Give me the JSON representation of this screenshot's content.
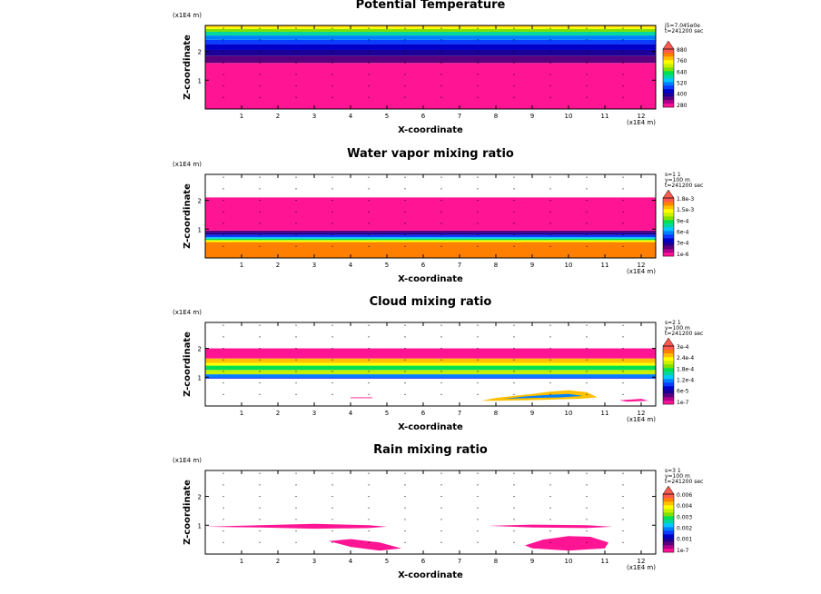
{
  "chart_data": [
    {
      "type": "heatmap",
      "title": "Potential Temperature",
      "xlabel": "X-coordinate",
      "ylabel": "Z-coordinate",
      "x_unit": "(x1E4 m)",
      "z_unit": "(x1E4 m)",
      "xlim": [
        0,
        12.4
      ],
      "zlim": [
        0,
        2.9
      ],
      "x_ticks": [
        "1",
        "2",
        "3",
        "4",
        "5",
        "6",
        "7",
        "8",
        "9",
        "10",
        "11",
        "12"
      ],
      "z_ticks": [
        "1",
        "2"
      ],
      "info": [
        "j5=7.045e0e",
        "t=241200 sec"
      ],
      "legend_labels": [
        "880",
        "760",
        "640",
        "520",
        "400",
        "280"
      ],
      "levels": [
        280,
        320,
        360,
        400,
        440,
        480,
        520,
        560,
        600,
        640,
        680,
        720,
        760,
        800,
        840,
        880
      ],
      "bands": [
        {
          "z0": 0.0,
          "z1": 1.6,
          "level": 280
        },
        {
          "z0": 1.6,
          "z1": 1.85,
          "level": 360
        },
        {
          "z0": 1.85,
          "z1": 2.05,
          "level": 400
        },
        {
          "z0": 2.05,
          "z1": 2.25,
          "level": 440
        },
        {
          "z0": 2.25,
          "z1": 2.4,
          "level": 480
        },
        {
          "z0": 2.4,
          "z1": 2.55,
          "level": 520
        },
        {
          "z0": 2.55,
          "z1": 2.68,
          "level": 600
        },
        {
          "z0": 2.68,
          "z1": 2.78,
          "level": 680
        },
        {
          "z0": 2.78,
          "z1": 2.85,
          "level": 760
        },
        {
          "z0": 2.85,
          "z1": 2.9,
          "level": 800
        }
      ],
      "patches": []
    },
    {
      "type": "heatmap",
      "title": "Water vapor mixing ratio",
      "xlabel": "X-coordinate",
      "ylabel": "Z-coordinate",
      "x_unit": "(x1E4 m)",
      "z_unit": "(x1E4 m)",
      "xlim": [
        0,
        12.4
      ],
      "zlim": [
        0,
        2.9
      ],
      "x_ticks": [
        "1",
        "2",
        "3",
        "4",
        "5",
        "6",
        "7",
        "8",
        "9",
        "10",
        "11",
        "12"
      ],
      "z_ticks": [
        "1",
        "2"
      ],
      "info": [
        "s=1 1",
        "y=100 m",
        "t=241200 sec"
      ],
      "legend_labels": [
        "1.8e-3",
        "1.5e-3",
        "9e-4",
        "6e-4",
        "3e-4",
        "1e-6"
      ],
      "levels": [
        1e-06,
        0.0001,
        0.0002,
        0.0003,
        0.0004,
        0.0005,
        0.0006,
        0.0007,
        0.0008,
        0.0009,
        0.0011,
        0.0012,
        0.0014,
        0.0015,
        0.0016,
        0.0018
      ],
      "bands": [
        {
          "z0": 0.0,
          "z1": 0.55,
          "level": 0.0016
        },
        {
          "z0": 0.55,
          "z1": 0.62,
          "level": 0.0014
        },
        {
          "z0": 0.62,
          "z1": 0.67,
          "level": 0.0009
        },
        {
          "z0": 0.67,
          "z1": 0.72,
          "level": 0.0007
        },
        {
          "z0": 0.72,
          "z1": 0.8,
          "level": 0.0005
        },
        {
          "z0": 0.8,
          "z1": 0.88,
          "level": 0.0003
        },
        {
          "z0": 0.88,
          "z1": 0.95,
          "level": 0.0002
        },
        {
          "z0": 0.95,
          "z1": 2.1,
          "level": 1e-06
        }
      ],
      "patches": []
    },
    {
      "type": "heatmap",
      "title": "Cloud mixing ratio",
      "xlabel": "X-coordinate",
      "ylabel": "Z-coordinate",
      "x_unit": "(x1E4 m)",
      "z_unit": "(x1E4 m)",
      "xlim": [
        0,
        12.4
      ],
      "zlim": [
        0,
        2.9
      ],
      "x_ticks": [
        "1",
        "2",
        "3",
        "4",
        "5",
        "6",
        "7",
        "8",
        "9",
        "10",
        "11",
        "12"
      ],
      "z_ticks": [
        "1",
        "2"
      ],
      "info": [
        "s=2 1",
        "y=100 m",
        "t=241200 sec"
      ],
      "legend_labels": [
        "3e-4",
        "2.4e-4",
        "1.8e-4",
        "1.2e-4",
        "6e-5",
        "1e-7"
      ],
      "levels": [
        1e-07,
        2e-05,
        4e-05,
        6e-05,
        8e-05,
        0.0001,
        0.00012,
        0.00014,
        0.00016,
        0.00018,
        0.0002,
        0.00022,
        0.00024,
        0.00026,
        0.00028,
        0.0003
      ],
      "bands": [
        {
          "z0": 0.95,
          "z1": 1.0,
          "level": 0.0001
        },
        {
          "z0": 1.0,
          "z1": 1.1,
          "level": 0.00012
        },
        {
          "z0": 1.1,
          "z1": 1.25,
          "level": 0.00022
        },
        {
          "z0": 1.25,
          "z1": 1.4,
          "level": 0.00018
        },
        {
          "z0": 1.4,
          "z1": 1.5,
          "level": 0.00024
        },
        {
          "z0": 1.5,
          "z1": 1.65,
          "level": 0.00026
        },
        {
          "z0": 1.65,
          "z1": 2.0,
          "level": 1e-07
        }
      ],
      "patches": [
        {
          "x": [
            7.6,
            8.0,
            8.5,
            9.0,
            9.5,
            10.0,
            10.5,
            10.8,
            10.3,
            9.5,
            8.8,
            8.0,
            7.6
          ],
          "z": [
            0.18,
            0.28,
            0.35,
            0.42,
            0.5,
            0.55,
            0.48,
            0.3,
            0.25,
            0.22,
            0.2,
            0.18,
            0.18
          ],
          "level": 0.00026
        },
        {
          "x": [
            8.2,
            8.8,
            9.4,
            10.0,
            10.4,
            9.8,
            9.0,
            8.2
          ],
          "z": [
            0.25,
            0.33,
            0.38,
            0.42,
            0.35,
            0.3,
            0.28,
            0.25
          ],
          "level": 0.00012
        },
        {
          "x": [
            11.4,
            12.0,
            12.2,
            11.6,
            11.4
          ],
          "z": [
            0.2,
            0.25,
            0.18,
            0.15,
            0.2
          ],
          "level": 1e-07
        },
        {
          "x": [
            4.0,
            4.6,
            4.6,
            4.0
          ],
          "z": [
            0.3,
            0.3,
            0.27,
            0.27
          ],
          "level": 1e-07
        }
      ]
    },
    {
      "type": "heatmap",
      "title": "Rain mixing ratio",
      "xlabel": "X-coordinate",
      "ylabel": "Z-coordinate",
      "x_unit": "(x1E4 m)",
      "z_unit": "(x1E4 m)",
      "xlim": [
        0,
        12.4
      ],
      "zlim": [
        0,
        2.9
      ],
      "x_ticks": [
        "1",
        "2",
        "3",
        "4",
        "5",
        "6",
        "7",
        "8",
        "9",
        "10",
        "11",
        "12"
      ],
      "z_ticks": [
        "1",
        "2"
      ],
      "info": [
        "s=3 1",
        "y=100 m",
        "t=241200 sec"
      ],
      "legend_labels": [
        "0.006",
        "0.004",
        "0.003",
        "0.002",
        "0.001",
        "1e-7"
      ],
      "levels": [
        1e-07,
        0.0005,
        0.001,
        0.0015,
        0.002,
        0.0025,
        0.003,
        0.0035,
        0.004,
        0.0045,
        0.005,
        0.0055,
        0.006,
        0.0065,
        0.007,
        0.0075
      ],
      "bands": [],
      "patches": [
        {
          "x": [
            0.0,
            1.5,
            3.0,
            4.5,
            5.0,
            4.5,
            3.0,
            1.5,
            0.0
          ],
          "z": [
            0.95,
            1.0,
            1.05,
            1.0,
            0.95,
            0.9,
            0.88,
            0.92,
            0.95
          ],
          "level": 1e-07
        },
        {
          "x": [
            7.8,
            9.0,
            10.5,
            11.2,
            10.5,
            9.0,
            7.8
          ],
          "z": [
            0.98,
            1.02,
            1.0,
            0.95,
            0.9,
            0.92,
            0.98
          ],
          "level": 1e-07
        },
        {
          "x": [
            3.4,
            4.0,
            4.8,
            5.4,
            4.8,
            4.0,
            3.4
          ],
          "z": [
            0.45,
            0.52,
            0.4,
            0.2,
            0.12,
            0.25,
            0.45
          ],
          "level": 1e-07
        },
        {
          "x": [
            8.8,
            9.3,
            10.0,
            10.6,
            11.1,
            11.0,
            10.0,
            9.0,
            8.8
          ],
          "z": [
            0.3,
            0.5,
            0.62,
            0.6,
            0.4,
            0.2,
            0.12,
            0.2,
            0.3
          ],
          "level": 1e-07
        }
      ]
    }
  ]
}
